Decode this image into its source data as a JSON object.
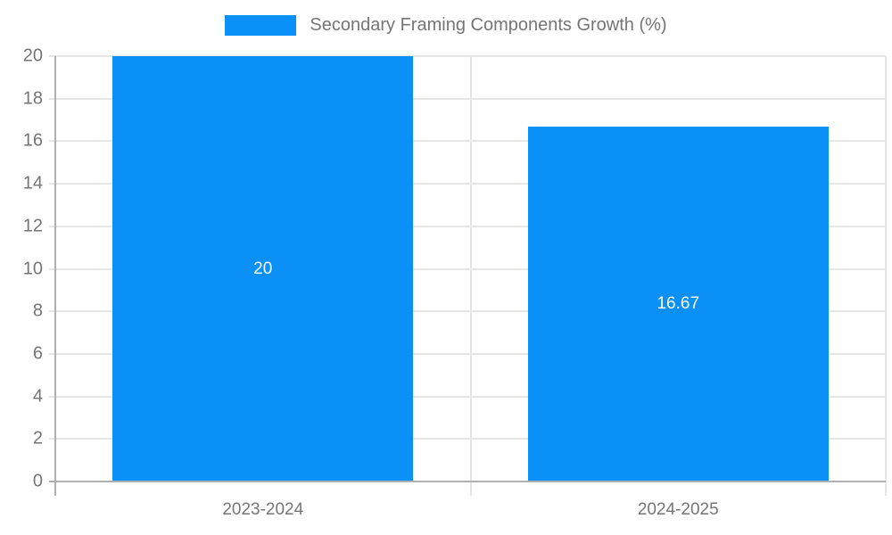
{
  "chart_data": {
    "type": "bar",
    "title": "Secondary Framing Components Growth (%)",
    "xlabel": "",
    "ylabel": "",
    "categories": [
      "2023-2024",
      "2024-2025"
    ],
    "values": [
      20,
      16.67
    ],
    "value_labels": [
      "20",
      "16.67"
    ],
    "yticks": [
      0,
      2,
      4,
      6,
      8,
      10,
      12,
      14,
      16,
      18,
      20
    ],
    "ylim": [
      0,
      20
    ],
    "grid": true,
    "legend": {
      "position": "top",
      "label": "Secondary Framing Components Growth (%)"
    },
    "colors": {
      "bar": "#0a90f6",
      "grid": "#e6e6e6",
      "axis": "#b0b0b0",
      "tick_label": "#757575",
      "value_label": "#ffffff",
      "legend_text": "#757575",
      "background": "#ffffff"
    }
  }
}
